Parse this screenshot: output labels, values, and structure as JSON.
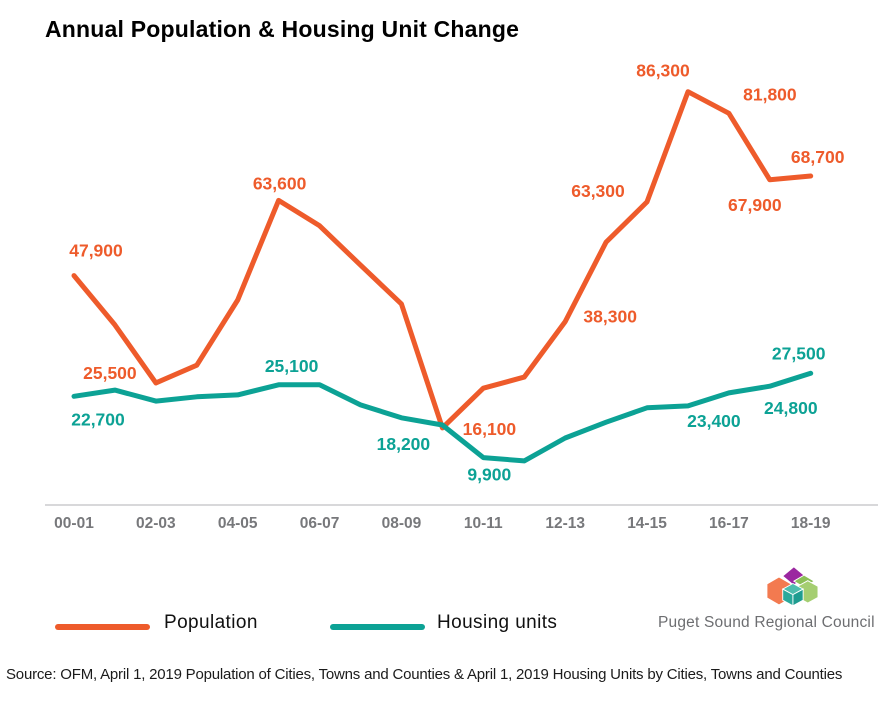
{
  "title": "Annual Population & Housing Unit Change",
  "source_note": "Source: OFM, April 1, 2019 Population of Cities, Towns and Counties & April 1, 2019 Housing Units by Cities, Towns and Counties",
  "logo": {
    "text": "Puget Sound Regional Council"
  },
  "colors": {
    "population": "#ee5b2b",
    "housing": "#0ca295",
    "axis_line": "#cbcccd",
    "axis_text": "#77787b"
  },
  "chart_data": {
    "type": "line",
    "title": "Annual Population & Housing Unit Change",
    "x": [
      "00-01",
      "01-02",
      "02-03",
      "03-04",
      "04-05",
      "05-06",
      "06-07",
      "07-08",
      "08-09",
      "09-10",
      "10-11",
      "11-12",
      "12-13",
      "13-14",
      "14-15",
      "15-16",
      "16-17",
      "17-18",
      "18-19"
    ],
    "x_tick_labels": [
      "00-01",
      "02-03",
      "04-05",
      "06-07",
      "08-09",
      "10-11",
      "12-13",
      "14-15",
      "16-17",
      "18-19"
    ],
    "series": [
      {
        "name": "Population",
        "color": "#ee5b2b",
        "values": [
          47900,
          37600,
          25500,
          29200,
          42800,
          63600,
          58300,
          50100,
          42000,
          16100,
          24400,
          26700,
          38300,
          54900,
          63300,
          86300,
          81800,
          67900,
          68700
        ],
        "point_labels": {
          "0": "47,900",
          "2": "25,500",
          "5": "63,600",
          "9": "16,100",
          "12": "38,300",
          "14": "63,300",
          "15": "86,300",
          "16": "81,800",
          "17": "67,900",
          "18": "68,700"
        }
      },
      {
        "name": "Housing units",
        "color": "#0ca295",
        "values": [
          22700,
          24000,
          21700,
          22600,
          23000,
          25100,
          25100,
          20900,
          18200,
          16700,
          9900,
          9200,
          14000,
          17300,
          20300,
          20700,
          23400,
          24800,
          27500
        ],
        "point_labels": {
          "0": "22,700",
          "6": "25,100",
          "8": "18,200",
          "10": "9,900",
          "16": "23,400",
          "17": "24,800",
          "18": "27,500"
        }
      }
    ],
    "ylim": [
      0,
      90000
    ],
    "grid": false,
    "legend_position": "bottom"
  }
}
